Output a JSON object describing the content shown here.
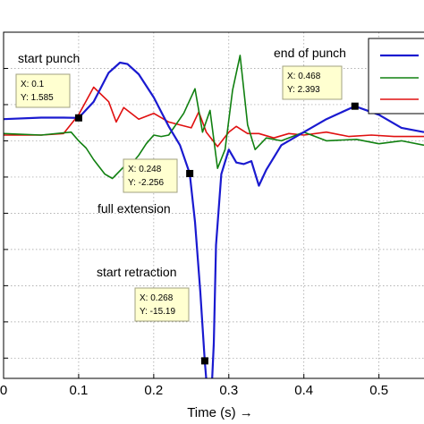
{
  "colors": {
    "background": "#ffffff",
    "grid": "#999999",
    "frame": "#000000",
    "tip_fill": "#ffffd0",
    "tip_border": "#a0a080",
    "series": [
      "#1a1ad0",
      "#108010",
      "#e01010"
    ]
  },
  "chart_data": {
    "type": "line",
    "title": "",
    "xlabel": "Time (s) →",
    "ylabel": "",
    "xlim": [
      0,
      0.56
    ],
    "ylim": [
      -16.4,
      7.5
    ],
    "x_ticks": [
      0,
      0.1,
      0.2,
      0.3,
      0.4,
      0.5
    ],
    "x_tick_labels": [
      "0",
      "0.1",
      "0.2",
      "0.3",
      "0.4",
      "0.5"
    ],
    "y_grid": [
      5,
      2.5,
      0,
      -2.5,
      -5,
      -7.5,
      -10,
      -12.5,
      -15
    ],
    "grid": true,
    "legend": {
      "position": "top-right",
      "entries": [
        "",
        "",
        ""
      ]
    },
    "series": [
      {
        "color": "#1a1ad0",
        "x": [
          0,
          0.05,
          0.08,
          0.1,
          0.12,
          0.14,
          0.155,
          0.165,
          0.18,
          0.2,
          0.22,
          0.235,
          0.248,
          0.255,
          0.262,
          0.268,
          0.275,
          0.28,
          0.283,
          0.29,
          0.3,
          0.31,
          0.32,
          0.33,
          0.34,
          0.35,
          0.37,
          0.4,
          0.43,
          0.468,
          0.5,
          0.53,
          0.56
        ],
        "y": [
          1.5,
          1.6,
          1.6,
          1.585,
          2.7,
          4.7,
          5.4,
          5.3,
          4.6,
          3.0,
          1.0,
          -0.3,
          -2.256,
          -5.6,
          -10.4,
          -15.19,
          -19.6,
          -14.0,
          -7.2,
          -2.3,
          -0.6,
          -1.5,
          -1.6,
          -1.4,
          -3.1,
          -2.0,
          -0.3,
          0.6,
          1.5,
          2.393,
          1.8,
          0.9,
          0.6
        ]
      },
      {
        "color": "#108010",
        "x": [
          0,
          0.05,
          0.09,
          0.1,
          0.11,
          0.12,
          0.135,
          0.145,
          0.16,
          0.17,
          0.18,
          0.19,
          0.2,
          0.21,
          0.22,
          0.24,
          0.255,
          0.265,
          0.275,
          0.285,
          0.295,
          0.305,
          0.315,
          0.325,
          0.335,
          0.35,
          0.37,
          0.4,
          0.43,
          0.47,
          0.5,
          0.53,
          0.56
        ],
        "y": [
          0.5,
          0.4,
          0.6,
          0.0,
          -0.5,
          -1.3,
          -2.3,
          -2.6,
          -1.8,
          -1.6,
          -1.0,
          -0.2,
          0.4,
          0.3,
          0.4,
          1.9,
          3.6,
          0.6,
          2.1,
          -1.9,
          -0.6,
          3.5,
          5.9,
          1.1,
          -0.6,
          0.2,
          0.0,
          0.6,
          0.0,
          0.1,
          -0.2,
          0.0,
          -0.3
        ]
      },
      {
        "color": "#e01010",
        "x": [
          0,
          0.05,
          0.08,
          0.1,
          0.12,
          0.14,
          0.15,
          0.16,
          0.18,
          0.2,
          0.22,
          0.25,
          0.26,
          0.27,
          0.285,
          0.3,
          0.31,
          0.325,
          0.34,
          0.36,
          0.38,
          0.4,
          0.43,
          0.46,
          0.49,
          0.52,
          0.56
        ],
        "y": [
          0.4,
          0.4,
          0.5,
          1.8,
          3.7,
          2.7,
          1.3,
          2.3,
          1.5,
          1.9,
          1.3,
          0.9,
          2.0,
          0.6,
          -0.4,
          0.6,
          1.0,
          0.5,
          0.5,
          0.2,
          0.5,
          0.4,
          0.6,
          0.3,
          0.4,
          0.3,
          0.3
        ]
      }
    ],
    "annotations": [
      {
        "text": "start punch",
        "x": 0.1,
        "y": 1.585,
        "tip": [
          "X: 0.1",
          "Y: 1.585"
        ]
      },
      {
        "text": "full extension",
        "x": 0.248,
        "y": -2.256,
        "tip": [
          "X: 0.248",
          "Y: -2.256"
        ]
      },
      {
        "text": "start retraction",
        "x": 0.268,
        "y": -15.19,
        "tip": [
          "X: 0.268",
          "Y: -15.19"
        ]
      },
      {
        "text": "end of punch",
        "x": 0.468,
        "y": 2.393,
        "tip": [
          "X: 0.468",
          "Y: 2.393"
        ]
      }
    ]
  }
}
